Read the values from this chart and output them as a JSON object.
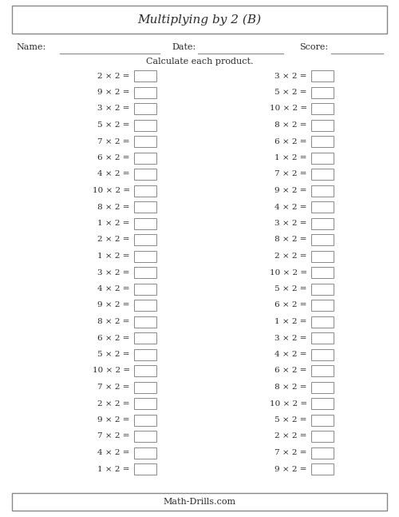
{
  "title": "Multiplying by 2 (B)",
  "name_label": "Name:",
  "date_label": "Date:",
  "score_label": "Score:",
  "instruction": "Calculate each product.",
  "footer": "Math-Drills.com",
  "left_column": [
    "2 × 2 =",
    "9 × 2 =",
    "3 × 2 =",
    "5 × 2 =",
    "7 × 2 =",
    "6 × 2 =",
    "4 × 2 =",
    "10 × 2 =",
    "8 × 2 =",
    "1 × 2 =",
    "2 × 2 =",
    "1 × 2 =",
    "3 × 2 =",
    "4 × 2 =",
    "9 × 2 =",
    "8 × 2 =",
    "6 × 2 =",
    "5 × 2 =",
    "10 × 2 =",
    "7 × 2 =",
    "2 × 2 =",
    "9 × 2 =",
    "7 × 2 =",
    "4 × 2 =",
    "1 × 2 ="
  ],
  "right_column": [
    "3 × 2 =",
    "5 × 2 =",
    "10 × 2 =",
    "8 × 2 =",
    "6 × 2 =",
    "1 × 2 =",
    "7 × 2 =",
    "9 × 2 =",
    "4 × 2 =",
    "3 × 2 =",
    "8 × 2 =",
    "2 × 2 =",
    "10 × 2 =",
    "5 × 2 =",
    "6 × 2 =",
    "1 × 2 =",
    "3 × 2 =",
    "4 × 2 =",
    "6 × 2 =",
    "8 × 2 =",
    "10 × 2 =",
    "5 × 2 =",
    "2 × 2 =",
    "7 × 2 =",
    "9 × 2 ="
  ],
  "bg_color": "#ffffff",
  "text_color": "#2b2b2b",
  "border_color": "#888888",
  "title_fontsize": 11,
  "header_fontsize": 8,
  "body_fontsize": 7.5,
  "footer_fontsize": 8
}
